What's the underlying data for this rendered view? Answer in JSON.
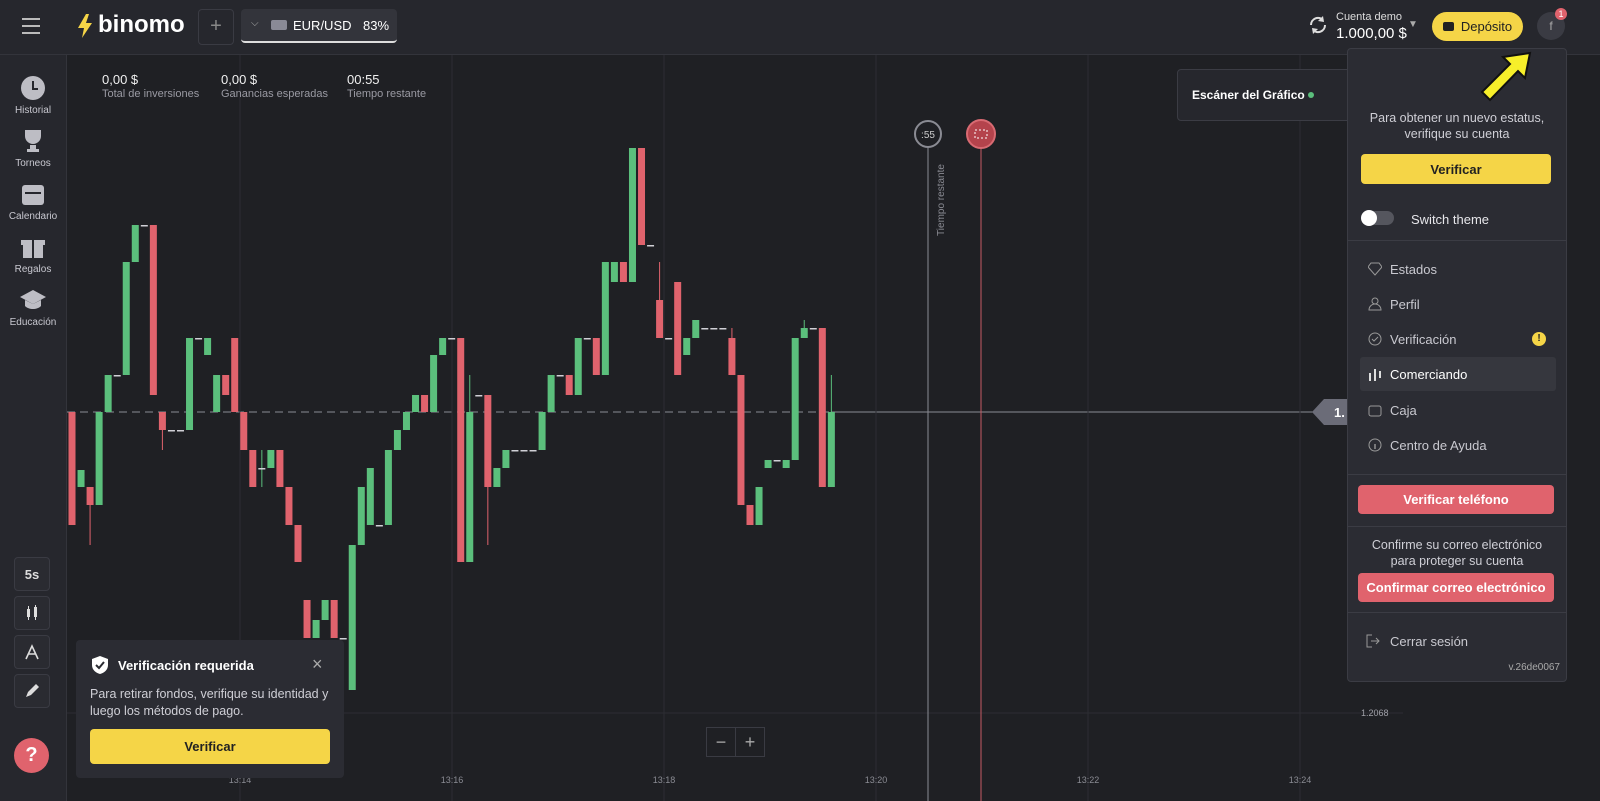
{
  "header": {
    "brand": "binomo",
    "asset": "EUR/USD",
    "payout": "83%",
    "account_label": "Cuenta demo",
    "balance": "1.000,00 $",
    "deposit": "Depósito",
    "badge": "1",
    "avatar": "f"
  },
  "sidebar": {
    "items": [
      "Historial",
      "Torneos",
      "Calendario",
      "Regalos",
      "Educación"
    ],
    "timeframe": "5s",
    "help": "?"
  },
  "stats": [
    {
      "value": "0,00 $",
      "label": "Total de inversiones"
    },
    {
      "value": "0,00 $",
      "label": "Ganancias esperadas"
    },
    {
      "value": "00:55",
      "label": "Tiempo restante"
    }
  ],
  "scanner": "Escáner del Gráfico",
  "timer_badge": ":55",
  "timeline_label": "Tiempo restante",
  "price_tag": "1.",
  "notification": {
    "title": "Verificación requerida",
    "text": "Para retirar fondos, verifique su identidad y luego los métodos de pago.",
    "button": "Verificar"
  },
  "menu": {
    "status_text": "Para obtener un nuevo estatus, verifique su cuenta",
    "verify": "Verificar",
    "switch_theme": "Switch theme",
    "items": [
      "Estados",
      "Perfil",
      "Verificación",
      "Comerciando",
      "Caja",
      "Centro de Ayuda"
    ],
    "verify_phone": "Verificar teléfono",
    "email_text": "Confirme su correo electrónico para proteger su cuenta",
    "confirm_email": "Confirmar correo electrónico",
    "logout": "Cerrar sesión",
    "version": "v.26de0067"
  },
  "chart_data": {
    "type": "candlestick",
    "up_color": "#5bbf7c",
    "down_color": "#e0636d",
    "ylim": [
      1.206656,
      1.208116
    ],
    "yticks": [
      1.2068
    ],
    "time_labels": [
      "13:14",
      "13:16",
      "13:18",
      "13:20",
      "13:22",
      "13:24"
    ],
    "candles": [
      [
        1.207402,
        1.207402,
        1.207176,
        1.207176
      ],
      [
        1.207252,
        1.207286,
        1.207252,
        1.207286
      ],
      [
        1.207252,
        1.207252,
        1.207136,
        1.207216
      ],
      [
        1.207216,
        1.207402,
        1.207216,
        1.207402
      ],
      [
        1.207402,
        1.207476,
        1.207402,
        1.207476
      ],
      [
        1.207476,
        1.207476,
        1.207476,
        1.207476
      ],
      [
        1.207476,
        1.207702,
        1.207476,
        1.207702
      ],
      [
        1.207702,
        1.207776,
        1.207702,
        1.207776
      ],
      [
        1.207776,
        1.207776,
        1.207776,
        1.207776
      ],
      [
        1.207776,
        1.207776,
        1.207436,
        1.207436
      ],
      [
        1.207402,
        1.207402,
        1.207326,
        1.207366
      ],
      [
        1.207366,
        1.207366,
        1.207366,
        1.207366
      ],
      [
        1.207366,
        1.207366,
        1.207366,
        1.207366
      ],
      [
        1.207366,
        1.20755,
        1.207366,
        1.20755
      ],
      [
        1.20755,
        1.20755,
        1.20755,
        1.20755
      ],
      [
        1.207516,
        1.20755,
        1.207516,
        1.20755
      ],
      [
        1.207402,
        1.207476,
        1.207402,
        1.207476
      ],
      [
        1.207476,
        1.207476,
        1.207436,
        1.207436
      ],
      [
        1.20755,
        1.20755,
        1.207402,
        1.207402
      ],
      [
        1.207402,
        1.207402,
        1.207326,
        1.207326
      ],
      [
        1.207326,
        1.207326,
        1.207252,
        1.207252
      ],
      [
        1.20729,
        1.207326,
        1.207252,
        1.20729
      ],
      [
        1.20729,
        1.207326,
        1.20729,
        1.207326
      ],
      [
        1.207326,
        1.207326,
        1.207252,
        1.207252
      ],
      [
        1.207252,
        1.207252,
        1.207176,
        1.207176
      ],
      [
        1.207176,
        1.207176,
        1.207102,
        1.207102
      ],
      [
        1.207026,
        1.207026,
        1.20695,
        1.20695
      ],
      [
        1.20695,
        1.206986,
        1.20695,
        1.206986
      ],
      [
        1.206986,
        1.207026,
        1.206986,
        1.207026
      ],
      [
        1.207026,
        1.207026,
        1.20695,
        1.20695
      ],
      [
        1.20695,
        1.20695,
        1.20695,
        1.20695
      ],
      [
        1.206846,
        1.207136,
        1.206846,
        1.207136
      ],
      [
        1.207136,
        1.207252,
        1.207136,
        1.207252
      ],
      [
        1.207176,
        1.20729,
        1.207176,
        1.20729
      ],
      [
        1.207176,
        1.207176,
        1.207176,
        1.207176
      ],
      [
        1.207176,
        1.207326,
        1.207176,
        1.207326
      ],
      [
        1.207326,
        1.207366,
        1.207326,
        1.207366
      ],
      [
        1.207366,
        1.207402,
        1.207366,
        1.207402
      ],
      [
        1.207402,
        1.207436,
        1.207402,
        1.207436
      ],
      [
        1.207436,
        1.207436,
        1.207402,
        1.207402
      ],
      [
        1.207402,
        1.207516,
        1.207402,
        1.207516
      ],
      [
        1.207516,
        1.20755,
        1.207516,
        1.20755
      ],
      [
        1.20755,
        1.20755,
        1.20755,
        1.20755
      ],
      [
        1.20755,
        1.20755,
        1.207102,
        1.207102
      ],
      [
        1.207102,
        1.207476,
        1.207102,
        1.207402
      ],
      [
        1.207436,
        1.207436,
        1.207436,
        1.207436
      ],
      [
        1.207436,
        1.207436,
        1.207136,
        1.207252
      ],
      [
        1.207252,
        1.20729,
        1.207252,
        1.20729
      ],
      [
        1.20729,
        1.207326,
        1.20729,
        1.207326
      ],
      [
        1.207326,
        1.207326,
        1.207326,
        1.207326
      ],
      [
        1.207326,
        1.207326,
        1.207326,
        1.207326
      ],
      [
        1.207326,
        1.207326,
        1.207326,
        1.207326
      ],
      [
        1.207326,
        1.207402,
        1.207326,
        1.207402
      ],
      [
        1.207402,
        1.207476,
        1.207402,
        1.207476
      ],
      [
        1.207476,
        1.207476,
        1.207476,
        1.207476
      ],
      [
        1.207476,
        1.207476,
        1.207436,
        1.207436
      ],
      [
        1.207436,
        1.20755,
        1.207436,
        1.20755
      ],
      [
        1.20755,
        1.20755,
        1.20755,
        1.20755
      ],
      [
        1.20755,
        1.20755,
        1.207476,
        1.207476
      ],
      [
        1.207476,
        1.207702,
        1.207476,
        1.207702
      ],
      [
        1.207662,
        1.207702,
        1.207662,
        1.207702
      ],
      [
        1.207702,
        1.207702,
        1.207662,
        1.207662
      ],
      [
        1.207662,
        1.20793,
        1.207662,
        1.20793
      ],
      [
        1.20793,
        1.20793,
        1.207736,
        1.207736
      ],
      [
        1.207736,
        1.207736,
        1.207736,
        1.207736
      ],
      [
        1.207626,
        1.207702,
        1.20755,
        1.20755
      ],
      [
        1.20755,
        1.20755,
        1.20755,
        1.20755
      ],
      [
        1.207662,
        1.207662,
        1.207476,
        1.207476
      ],
      [
        1.207516,
        1.20755,
        1.207516,
        1.20755
      ],
      [
        1.20755,
        1.207586,
        1.20755,
        1.207586
      ],
      [
        1.20757,
        1.20757,
        1.20757,
        1.20757
      ],
      [
        1.20757,
        1.20757,
        1.20757,
        1.20757
      ],
      [
        1.20757,
        1.20757,
        1.20757,
        1.20757
      ],
      [
        1.20755,
        1.20757,
        1.207476,
        1.207476
      ],
      [
        1.207476,
        1.207476,
        1.207216,
        1.207216
      ],
      [
        1.207216,
        1.207216,
        1.207176,
        1.207176
      ],
      [
        1.207176,
        1.207252,
        1.207176,
        1.207252
      ],
      [
        1.20729,
        1.207306,
        1.20729,
        1.207306
      ],
      [
        1.207306,
        1.207306,
        1.207306,
        1.207306
      ],
      [
        1.20729,
        1.207306,
        1.20729,
        1.207306
      ],
      [
        1.207306,
        1.20755,
        1.207306,
        1.20755
      ],
      [
        1.20755,
        1.207586,
        1.20755,
        1.20757
      ],
      [
        1.20757,
        1.20757,
        1.20757,
        1.20757
      ],
      [
        1.20757,
        1.20757,
        1.207252,
        1.207252
      ],
      [
        1.207252,
        1.207476,
        1.207252,
        1.207402
      ]
    ]
  }
}
